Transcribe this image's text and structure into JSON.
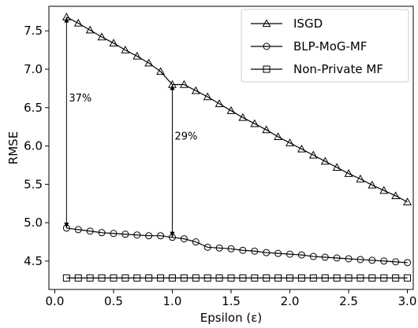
{
  "chart_data": {
    "type": "line",
    "xlabel": "Epsilon (ε)",
    "ylabel": "RMSE",
    "xlim": [
      -0.05,
      3.05
    ],
    "ylim": [
      4.13,
      7.82
    ],
    "xticks": [
      0.0,
      0.5,
      1.0,
      1.5,
      2.0,
      2.5,
      3.0
    ],
    "xtick_labels": [
      "0.0",
      "0.5",
      "1.0",
      "1.5",
      "2.0",
      "2.5",
      "3.0"
    ],
    "yticks": [
      4.5,
      5.0,
      5.5,
      6.0,
      6.5,
      7.0,
      7.5
    ],
    "ytick_labels": [
      "4.5",
      "5.0",
      "5.5",
      "6.0",
      "6.5",
      "7.0",
      "7.5"
    ],
    "grid": false,
    "legend": "top-right",
    "x": [
      0.1,
      0.2,
      0.3,
      0.4,
      0.5,
      0.6,
      0.7,
      0.8,
      0.9,
      1.0,
      1.1,
      1.2,
      1.3,
      1.4,
      1.5,
      1.6,
      1.7,
      1.8,
      1.9,
      2.0,
      2.1,
      2.2,
      2.3,
      2.4,
      2.5,
      2.6,
      2.7,
      2.8,
      2.9,
      3.0
    ],
    "series": [
      {
        "name": "ISGD",
        "marker": "triangle",
        "values": [
          7.68,
          7.6,
          7.51,
          7.42,
          7.34,
          7.25,
          7.17,
          7.08,
          6.97,
          6.8,
          6.8,
          6.72,
          6.64,
          6.55,
          6.46,
          6.37,
          6.29,
          6.21,
          6.12,
          6.04,
          5.96,
          5.88,
          5.8,
          5.72,
          5.64,
          5.57,
          5.49,
          5.42,
          5.35,
          5.27
        ]
      },
      {
        "name": "BLP-MoG-MF",
        "marker": "circle",
        "values": [
          4.93,
          4.91,
          4.89,
          4.87,
          4.86,
          4.85,
          4.84,
          4.83,
          4.83,
          4.81,
          4.79,
          4.75,
          4.68,
          4.67,
          4.66,
          4.64,
          4.63,
          4.61,
          4.6,
          4.59,
          4.58,
          4.56,
          4.55,
          4.54,
          4.53,
          4.52,
          4.51,
          4.5,
          4.49,
          4.48
        ]
      },
      {
        "name": "Non-Private MF",
        "marker": "square",
        "values": [
          4.28,
          4.28,
          4.28,
          4.28,
          4.28,
          4.28,
          4.28,
          4.28,
          4.28,
          4.28,
          4.28,
          4.28,
          4.28,
          4.28,
          4.28,
          4.28,
          4.28,
          4.28,
          4.28,
          4.28,
          4.28,
          4.28,
          4.28,
          4.28,
          4.28,
          4.28,
          4.28,
          4.28,
          4.28,
          4.28
        ]
      }
    ],
    "annotations": [
      {
        "text": "37%",
        "x": 0.1,
        "y_from": 4.93,
        "y_to": 7.68
      },
      {
        "text": "29%",
        "x": 1.0,
        "y_from": 4.81,
        "y_to": 6.8
      }
    ]
  }
}
